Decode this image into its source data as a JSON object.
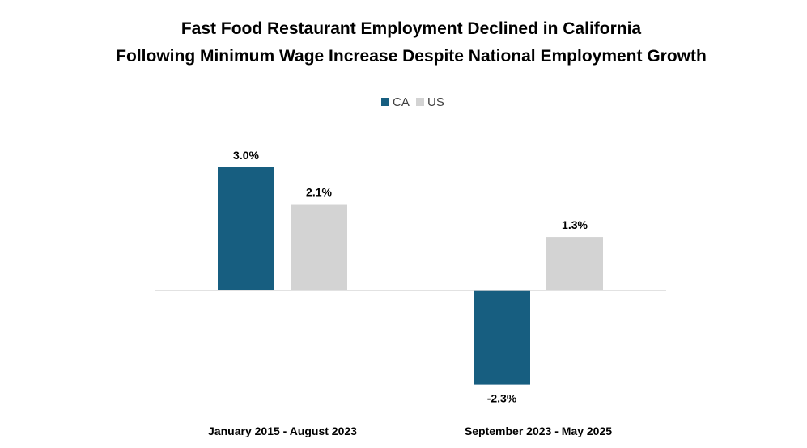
{
  "chart_data": {
    "type": "bar",
    "title_lines": [
      "Fast Food Restaurant Employment Declined in California",
      "Following Minimum Wage Increase Despite National Employment Growth"
    ],
    "categories": [
      "January 2015 - August 2023",
      "September 2023 - May 2025"
    ],
    "series": [
      {
        "name": "CA",
        "color": "#175e80",
        "values": [
          3.0,
          -2.3
        ],
        "labels": [
          "3.0%",
          "-2.3%"
        ]
      },
      {
        "name": "US",
        "color": "#d3d3d3",
        "values": [
          2.1,
          1.3
        ],
        "labels": [
          "2.1%",
          "1.3%"
        ]
      }
    ],
    "value_unit": "%",
    "ylim": [
      -2.3,
      3.0
    ],
    "grid": false,
    "legend_position": "top-center",
    "xlabel": "",
    "ylabel": ""
  }
}
